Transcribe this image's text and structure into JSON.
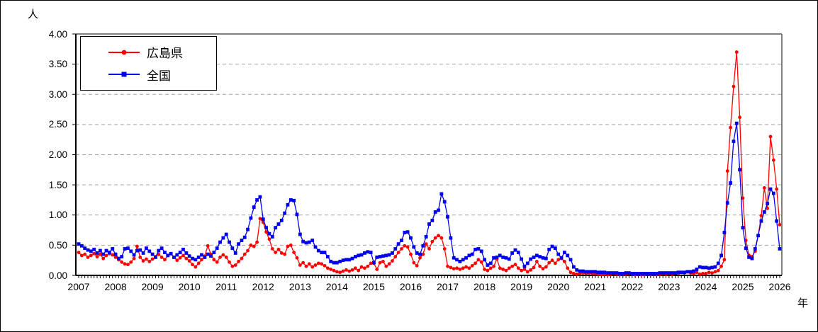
{
  "page": {
    "background": "#ffffff",
    "border_color": "#000000"
  },
  "axis_titles": {
    "y_unit": "人",
    "x_unit": "年"
  },
  "legend": {
    "position": "top-left inside plot",
    "entries": [
      "広島県",
      "全国"
    ]
  },
  "chart_data": {
    "type": "line",
    "title": "",
    "ylabel": "人",
    "xlabel": "年",
    "x_start": "2007-01",
    "x_end": "2026-01",
    "x_interval": "monthly",
    "x_tick_labels": [
      "2007",
      "2008",
      "2009",
      "2010",
      "2011",
      "2012",
      "2013",
      "2014",
      "2015",
      "2016",
      "2017",
      "2018",
      "2019",
      "2020",
      "2021",
      "2022",
      "2023",
      "2024",
      "2025",
      "2026"
    ],
    "y_tick_labels": [
      "0.00",
      "0.50",
      "1.00",
      "1.50",
      "2.00",
      "2.50",
      "3.00",
      "3.50",
      "4.00"
    ],
    "ylim": [
      0,
      4
    ],
    "grid": "horizontal dashed gray at every 0.50",
    "plot_border_color": "#808080",
    "axis_color": "#000000",
    "gridline_color": "#a3a3a3",
    "series": [
      {
        "name": "広島県",
        "color": "#ff0000",
        "marker": "circle",
        "values": [
          0.38,
          0.33,
          0.35,
          0.3,
          0.33,
          0.36,
          0.31,
          0.35,
          0.28,
          0.33,
          0.36,
          0.34,
          0.3,
          0.26,
          0.22,
          0.19,
          0.18,
          0.22,
          0.28,
          0.48,
          0.3,
          0.24,
          0.27,
          0.23,
          0.27,
          0.31,
          0.35,
          0.3,
          0.26,
          0.33,
          0.36,
          0.3,
          0.25,
          0.29,
          0.33,
          0.28,
          0.24,
          0.18,
          0.14,
          0.2,
          0.26,
          0.32,
          0.49,
          0.35,
          0.26,
          0.22,
          0.3,
          0.34,
          0.3,
          0.22,
          0.15,
          0.17,
          0.23,
          0.28,
          0.35,
          0.41,
          0.5,
          0.48,
          0.55,
          0.94,
          0.88,
          0.72,
          0.6,
          0.44,
          0.38,
          0.43,
          0.37,
          0.35,
          0.48,
          0.5,
          0.38,
          0.29,
          0.17,
          0.21,
          0.15,
          0.19,
          0.14,
          0.17,
          0.2,
          0.19,
          0.16,
          0.12,
          0.1,
          0.08,
          0.06,
          0.05,
          0.07,
          0.09,
          0.07,
          0.09,
          0.12,
          0.08,
          0.14,
          0.12,
          0.15,
          0.2,
          0.2,
          0.1,
          0.21,
          0.23,
          0.15,
          0.19,
          0.24,
          0.31,
          0.38,
          0.44,
          0.49,
          0.47,
          0.35,
          0.21,
          0.16,
          0.29,
          0.35,
          0.52,
          0.44,
          0.56,
          0.62,
          0.66,
          0.62,
          0.44,
          0.15,
          0.13,
          0.11,
          0.12,
          0.1,
          0.12,
          0.14,
          0.12,
          0.16,
          0.2,
          0.26,
          0.22,
          0.1,
          0.08,
          0.12,
          0.15,
          0.27,
          0.12,
          0.1,
          0.08,
          0.12,
          0.15,
          0.18,
          0.12,
          0.08,
          0.1,
          0.06,
          0.09,
          0.13,
          0.23,
          0.15,
          0.11,
          0.14,
          0.21,
          0.25,
          0.2,
          0.26,
          0.28,
          0.23,
          0.12,
          0.05,
          0.03,
          0.02,
          0.03,
          0.04,
          0.03,
          0.04,
          0.03,
          0.03,
          0.02,
          0.01,
          0.02,
          0.01,
          0.02,
          0.03,
          0.02,
          0.01,
          0.02,
          0.02,
          0.03,
          0.02,
          0.01,
          0.02,
          0.01,
          0.01,
          0.02,
          0.01,
          0.02,
          0.01,
          0.02,
          0.03,
          0.02,
          0.03,
          0.02,
          0.04,
          0.03,
          0.05,
          0.04,
          0.06,
          0.04,
          0.03,
          0.05,
          0.02,
          0.03,
          0.03,
          0.05,
          0.04,
          0.06,
          0.08,
          0.15,
          0.26,
          1.73,
          2.45,
          3.13,
          3.7,
          2.62,
          1.28,
          0.58,
          0.33,
          0.31,
          0.4,
          0.66,
          0.99,
          1.45,
          1.11,
          2.3,
          1.91,
          1.43,
          0.84
        ]
      },
      {
        "name": "全国",
        "color": "#0000ee",
        "marker": "square",
        "values": [
          0.52,
          0.49,
          0.45,
          0.42,
          0.4,
          0.43,
          0.37,
          0.41,
          0.35,
          0.41,
          0.38,
          0.44,
          0.35,
          0.28,
          0.31,
          0.44,
          0.45,
          0.4,
          0.34,
          0.41,
          0.42,
          0.37,
          0.45,
          0.4,
          0.35,
          0.3,
          0.41,
          0.45,
          0.38,
          0.33,
          0.36,
          0.3,
          0.34,
          0.38,
          0.43,
          0.37,
          0.32,
          0.28,
          0.26,
          0.3,
          0.34,
          0.3,
          0.35,
          0.32,
          0.38,
          0.45,
          0.55,
          0.62,
          0.68,
          0.55,
          0.45,
          0.37,
          0.52,
          0.58,
          0.63,
          0.76,
          0.95,
          1.13,
          1.25,
          1.3,
          0.93,
          0.79,
          0.69,
          0.64,
          0.79,
          0.85,
          0.91,
          1.03,
          1.17,
          1.25,
          1.24,
          1.01,
          0.68,
          0.56,
          0.54,
          0.55,
          0.58,
          0.47,
          0.41,
          0.38,
          0.38,
          0.31,
          0.23,
          0.21,
          0.21,
          0.23,
          0.25,
          0.26,
          0.26,
          0.28,
          0.31,
          0.33,
          0.34,
          0.37,
          0.39,
          0.38,
          0.21,
          0.3,
          0.31,
          0.32,
          0.33,
          0.34,
          0.37,
          0.44,
          0.52,
          0.58,
          0.71,
          0.72,
          0.62,
          0.47,
          0.37,
          0.35,
          0.49,
          0.64,
          0.85,
          0.91,
          1.05,
          1.08,
          1.35,
          1.22,
          0.97,
          0.62,
          0.29,
          0.26,
          0.23,
          0.26,
          0.29,
          0.33,
          0.35,
          0.43,
          0.44,
          0.4,
          0.26,
          0.17,
          0.2,
          0.29,
          0.3,
          0.33,
          0.3,
          0.29,
          0.27,
          0.37,
          0.42,
          0.38,
          0.27,
          0.15,
          0.2,
          0.27,
          0.3,
          0.33,
          0.31,
          0.29,
          0.28,
          0.43,
          0.48,
          0.45,
          0.35,
          0.29,
          0.38,
          0.33,
          0.26,
          0.14,
          0.09,
          0.07,
          0.07,
          0.06,
          0.06,
          0.06,
          0.06,
          0.05,
          0.05,
          0.05,
          0.04,
          0.04,
          0.04,
          0.04,
          0.03,
          0.03,
          0.04,
          0.04,
          0.03,
          0.03,
          0.03,
          0.03,
          0.03,
          0.03,
          0.03,
          0.03,
          0.03,
          0.04,
          0.04,
          0.04,
          0.04,
          0.04,
          0.04,
          0.05,
          0.05,
          0.05,
          0.06,
          0.06,
          0.07,
          0.1,
          0.14,
          0.13,
          0.13,
          0.12,
          0.13,
          0.14,
          0.2,
          0.33,
          0.71,
          1.2,
          1.53,
          2.22,
          2.52,
          1.75,
          0.79,
          0.45,
          0.3,
          0.28,
          0.44,
          0.66,
          0.9,
          1.05,
          1.19,
          1.43,
          1.36,
          0.9,
          0.44
        ]
      }
    ]
  }
}
